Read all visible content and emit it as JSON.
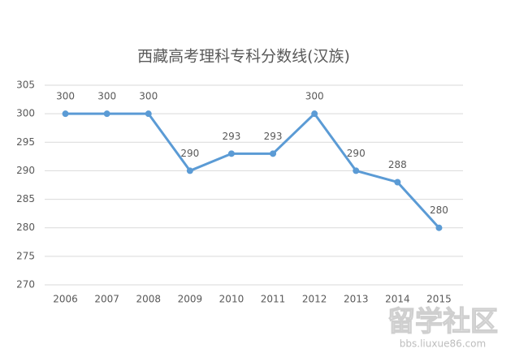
{
  "chart_data": {
    "type": "line",
    "title": "西藏高考理科专科分数线(汉族)",
    "categories": [
      "2006",
      "2007",
      "2008",
      "2009",
      "2010",
      "2011",
      "2012",
      "2013",
      "2014",
      "2015"
    ],
    "values": [
      300,
      300,
      300,
      290,
      293,
      293,
      300,
      290,
      288,
      280
    ],
    "color": "#5b9bd5",
    "ylim": [
      270,
      305
    ],
    "yticks": [
      270,
      275,
      280,
      285,
      290,
      295,
      300,
      305
    ],
    "grid": true,
    "data_labels": true
  },
  "watermark": {
    "title": "留学社区",
    "url": "bbs.liuxue86.com"
  }
}
